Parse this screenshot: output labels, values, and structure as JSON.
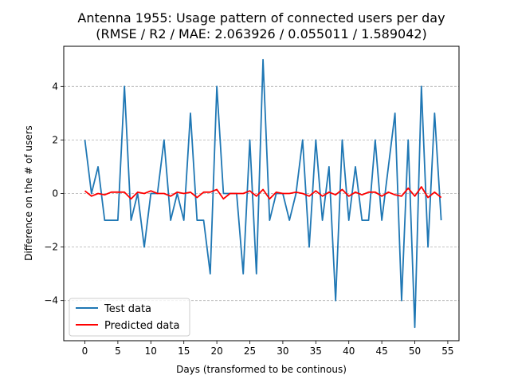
{
  "chart_data": {
    "type": "line",
    "title_line1": "Antenna 1955: Usage pattern of connected users per day",
    "title_line2": "(RMSE / R2 / MAE: 2.063926 / 0.055011 / 1.589042)",
    "xlabel": "Days (transformed to be continous)",
    "ylabel": "Difference on the # of users",
    "xlim": [
      -3.2,
      56.7
    ],
    "ylim": [
      -5.5,
      5.5
    ],
    "xticks": [
      0,
      5,
      10,
      15,
      20,
      25,
      30,
      35,
      40,
      45,
      50,
      55
    ],
    "yticks": [
      -4,
      -2,
      0,
      2,
      4
    ],
    "ytick_labels": [
      "−4",
      "−2",
      "0",
      "2",
      "4"
    ],
    "grid": "y-dashed",
    "legend_position": "lower-left",
    "x": [
      0,
      1,
      2,
      3,
      4,
      5,
      6,
      7,
      8,
      9,
      10,
      11,
      12,
      13,
      14,
      15,
      16,
      17,
      18,
      19,
      20,
      21,
      22,
      23,
      24,
      25,
      26,
      27,
      28,
      29,
      30,
      31,
      32,
      33,
      34,
      35,
      36,
      37,
      38,
      39,
      40,
      41,
      42,
      43,
      44,
      45,
      46,
      47,
      48,
      49,
      50,
      51,
      52,
      53,
      54
    ],
    "series": [
      {
        "name": "Test data",
        "color": "#1f77b4",
        "values": [
          2,
          0,
          1,
          -1,
          -1,
          -1,
          4,
          -1,
          0,
          -2,
          0,
          0,
          2,
          -1,
          0,
          -1,
          3,
          -1,
          -1,
          -3,
          4,
          0,
          0,
          0,
          -3,
          2,
          -3,
          5,
          -1,
          0,
          0,
          -1,
          0,
          2,
          -2,
          2,
          -1,
          1,
          -4,
          2,
          -1,
          1,
          -1,
          -1,
          2,
          -1,
          1,
          3,
          -4,
          2,
          -5,
          4,
          -2,
          3,
          -1
        ]
      },
      {
        "name": "Predicted data",
        "color": "#ff0000",
        "values": [
          0.1,
          -0.1,
          0.0,
          -0.05,
          0.05,
          0.05,
          0.05,
          -0.2,
          0.05,
          0.0,
          0.1,
          0.0,
          0.0,
          -0.1,
          0.05,
          0.0,
          0.05,
          -0.15,
          0.05,
          0.05,
          0.15,
          -0.2,
          0.0,
          0.0,
          0.0,
          0.1,
          -0.1,
          0.15,
          -0.2,
          0.05,
          0.0,
          0.0,
          0.05,
          0.0,
          -0.1,
          0.1,
          -0.1,
          0.05,
          -0.05,
          0.15,
          -0.1,
          0.05,
          -0.05,
          0.05,
          0.05,
          -0.1,
          0.05,
          -0.05,
          -0.1,
          0.2,
          -0.1,
          0.25,
          -0.15,
          0.05,
          -0.15
        ]
      }
    ]
  }
}
